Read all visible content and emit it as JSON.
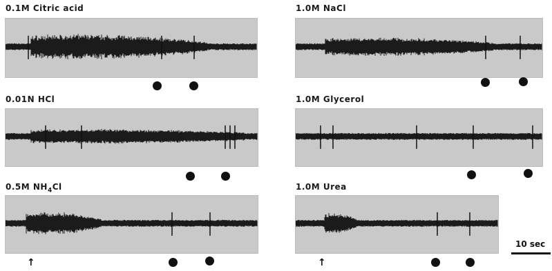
{
  "panels": [
    {
      "label": "0.1M Citric acid"
    },
    {
      "label": "1.0M NaCl"
    },
    {
      "label": "0.01N HCl"
    },
    {
      "label": "1.0M Glycerol"
    },
    {
      "label_pre": "0.5M NH",
      "label_sub": "4",
      "label_post": "Cl"
    },
    {
      "label": "1.0M Urea"
    }
  ],
  "scale_bar": {
    "label": "10 sec"
  }
}
